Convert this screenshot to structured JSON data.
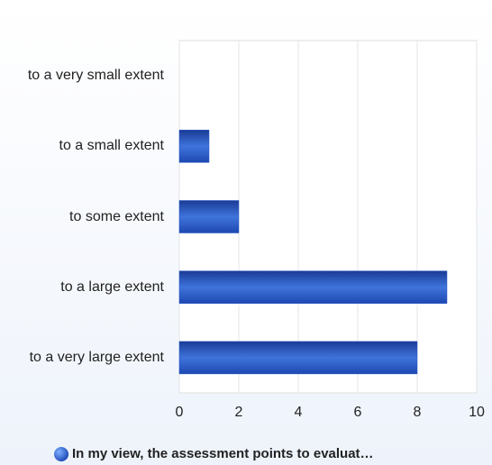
{
  "chart_data": {
    "type": "bar",
    "orientation": "horizontal",
    "categories": [
      "to a very small extent",
      "to a small extent",
      "to some extent",
      "to a large extent",
      "to a very large extent"
    ],
    "series": [
      {
        "name": "In my view, the assessment points to evaluat…",
        "color": "#2456c8",
        "values": [
          0,
          1,
          2,
          9,
          8
        ]
      }
    ],
    "xlim": [
      0,
      10
    ],
    "xticks": [
      0,
      2,
      4,
      6,
      8,
      10
    ],
    "grid": true,
    "legend": "bottom"
  }
}
